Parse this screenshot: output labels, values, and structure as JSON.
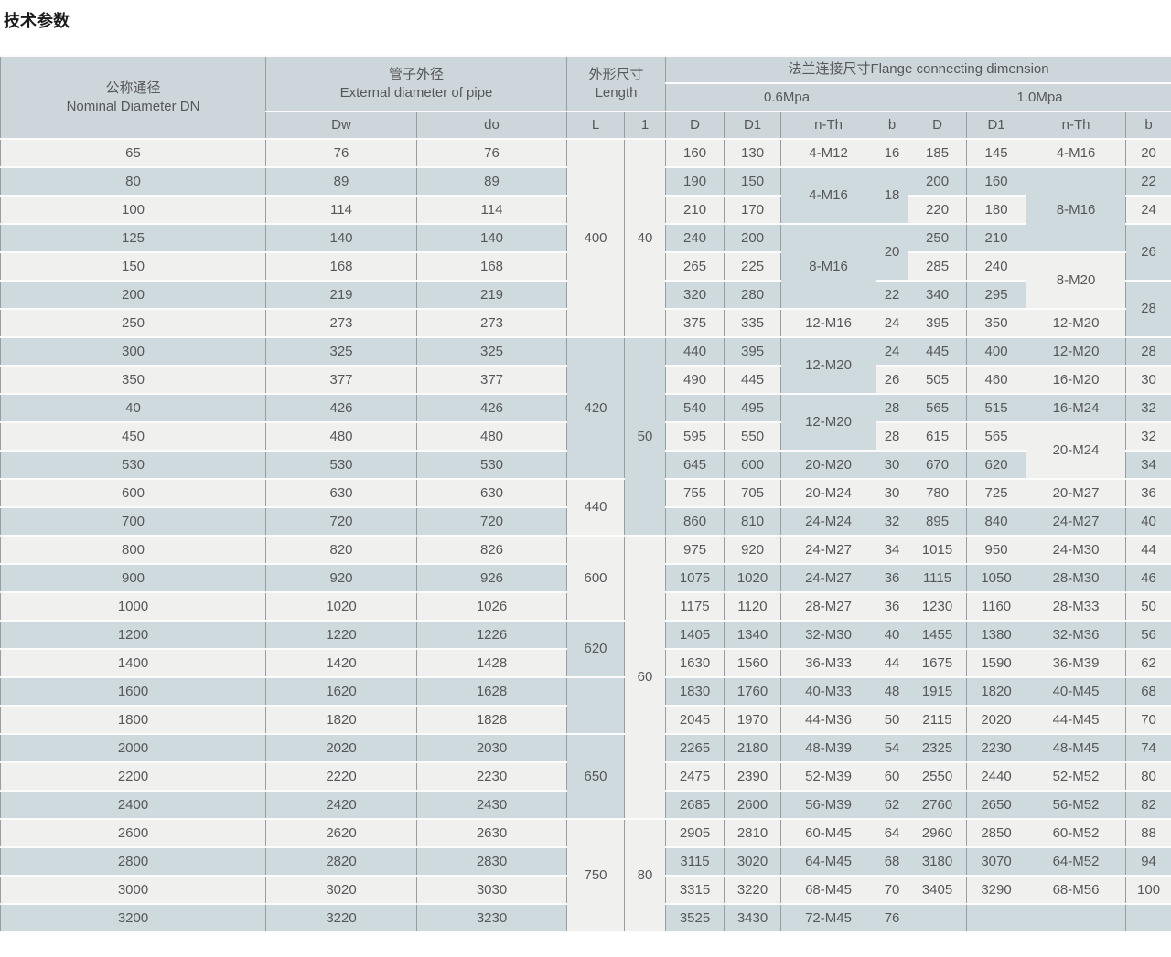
{
  "page_title": "技术参数",
  "colors": {
    "row_light": "#f0f0ee",
    "row_blue": "#cfdade",
    "header_bg": "#ccd6db",
    "grid_vertical": "#979da0",
    "grid_horizontal": "#fcfcfc",
    "text": "#57585a"
  },
  "table": {
    "header": {
      "nominal_diameter": "公称通径\nNominal Diameter DN",
      "external_diameter": "管子外径\nExternal diameter of pipe",
      "length": "外形尺寸\nLength",
      "flange": "法兰连接尺寸Flange connecting dimension",
      "p06": "0.6Mpa",
      "p10": "1.0Mpa",
      "cols": [
        "Dw",
        "do",
        "L",
        "1",
        "D",
        "D1",
        "n-Th",
        "b",
        "D",
        "D1",
        "n-Th",
        "b"
      ]
    },
    "rows": [
      [
        {
          "t": "65"
        },
        {
          "t": "76"
        },
        {
          "t": "76"
        },
        {
          "t": "400",
          "rs": 7
        },
        {
          "t": "40",
          "rs": 7
        },
        {
          "t": "160"
        },
        {
          "t": "130"
        },
        {
          "t": "4-M12"
        },
        {
          "t": "16"
        },
        {
          "t": "185"
        },
        {
          "t": "145"
        },
        {
          "t": "4-M16"
        },
        {
          "t": "20"
        }
      ],
      [
        {
          "t": "80"
        },
        {
          "t": "89"
        },
        {
          "t": "89"
        },
        {
          "t": "190"
        },
        {
          "t": "150"
        },
        {
          "t": "4-M16",
          "rs": 2
        },
        {
          "t": "18",
          "rs": 2
        },
        {
          "t": "200"
        },
        {
          "t": "160"
        },
        {
          "t": "8-M16",
          "rs": 3
        },
        {
          "t": "22"
        }
      ],
      [
        {
          "t": "100"
        },
        {
          "t": "114"
        },
        {
          "t": "114"
        },
        {
          "t": "210"
        },
        {
          "t": "170"
        },
        {
          "t": "220"
        },
        {
          "t": "180"
        },
        {
          "t": "24"
        }
      ],
      [
        {
          "t": "125"
        },
        {
          "t": "140"
        },
        {
          "t": "140"
        },
        {
          "t": "240"
        },
        {
          "t": "200"
        },
        {
          "t": "8-M16",
          "rs": 3
        },
        {
          "t": "20",
          "rs": 2
        },
        {
          "t": "250"
        },
        {
          "t": "210"
        },
        {
          "t": "26",
          "rs": 2
        }
      ],
      [
        {
          "t": "150"
        },
        {
          "t": "168"
        },
        {
          "t": "168"
        },
        {
          "t": "265"
        },
        {
          "t": "225"
        },
        {
          "t": "285"
        },
        {
          "t": "240"
        },
        {
          "t": "8-M20",
          "rs": 2
        }
      ],
      [
        {
          "t": "200"
        },
        {
          "t": "219"
        },
        {
          "t": "219"
        },
        {
          "t": "320"
        },
        {
          "t": "280"
        },
        {
          "t": "22"
        },
        {
          "t": "340"
        },
        {
          "t": "295"
        },
        {
          "t": "28",
          "rs": 2
        }
      ],
      [
        {
          "t": "250"
        },
        {
          "t": "273"
        },
        {
          "t": "273"
        },
        {
          "t": "375"
        },
        {
          "t": "335"
        },
        {
          "t": "12-M16"
        },
        {
          "t": "24"
        },
        {
          "t": "395"
        },
        {
          "t": "350"
        },
        {
          "t": "12-M20"
        }
      ],
      [
        {
          "t": "300"
        },
        {
          "t": "325"
        },
        {
          "t": "325"
        },
        {
          "t": "420",
          "rs": 5
        },
        {
          "t": "50",
          "rs": 7
        },
        {
          "t": "440"
        },
        {
          "t": "395"
        },
        {
          "t": "12-M20",
          "rs": 2
        },
        {
          "t": "24"
        },
        {
          "t": "445"
        },
        {
          "t": "400"
        },
        {
          "t": "12-M20"
        },
        {
          "t": "28"
        }
      ],
      [
        {
          "t": "350"
        },
        {
          "t": "377"
        },
        {
          "t": "377"
        },
        {
          "t": "490"
        },
        {
          "t": "445"
        },
        {
          "t": "26"
        },
        {
          "t": "505"
        },
        {
          "t": "460"
        },
        {
          "t": "16-M20"
        },
        {
          "t": "30"
        }
      ],
      [
        {
          "t": "40"
        },
        {
          "t": "426"
        },
        {
          "t": "426"
        },
        {
          "t": "540"
        },
        {
          "t": "495"
        },
        {
          "t": "12-M20",
          "rs": 2
        },
        {
          "t": "28"
        },
        {
          "t": "565"
        },
        {
          "t": "515"
        },
        {
          "t": "16-M24"
        },
        {
          "t": "32"
        }
      ],
      [
        {
          "t": "450"
        },
        {
          "t": "480"
        },
        {
          "t": "480"
        },
        {
          "t": "595"
        },
        {
          "t": "550"
        },
        {
          "t": "28"
        },
        {
          "t": "615"
        },
        {
          "t": "565"
        },
        {
          "t": "20-M24",
          "rs": 2
        },
        {
          "t": "32"
        }
      ],
      [
        {
          "t": "530"
        },
        {
          "t": "530"
        },
        {
          "t": "530"
        },
        {
          "t": "645"
        },
        {
          "t": "600"
        },
        {
          "t": "20-M20"
        },
        {
          "t": "30"
        },
        {
          "t": "670"
        },
        {
          "t": "620"
        },
        {
          "t": "34"
        }
      ],
      [
        {
          "t": "600"
        },
        {
          "t": "630"
        },
        {
          "t": "630"
        },
        {
          "t": "440",
          "rs": 2
        },
        {
          "t": "755"
        },
        {
          "t": "705"
        },
        {
          "t": "20-M24"
        },
        {
          "t": "30"
        },
        {
          "t": "780"
        },
        {
          "t": "725"
        },
        {
          "t": "20-M27"
        },
        {
          "t": "36"
        }
      ],
      [
        {
          "t": "700"
        },
        {
          "t": "720"
        },
        {
          "t": "720"
        },
        {
          "t": "860"
        },
        {
          "t": "810"
        },
        {
          "t": "24-M24"
        },
        {
          "t": "32"
        },
        {
          "t": "895"
        },
        {
          "t": "840"
        },
        {
          "t": "24-M27"
        },
        {
          "t": "40"
        }
      ],
      [
        {
          "t": "800"
        },
        {
          "t": "820"
        },
        {
          "t": "826"
        },
        {
          "t": "600",
          "rs": 3
        },
        {
          "t": "60",
          "rs": 10
        },
        {
          "t": "975"
        },
        {
          "t": "920"
        },
        {
          "t": "24-M27"
        },
        {
          "t": "34"
        },
        {
          "t": "1015"
        },
        {
          "t": "950"
        },
        {
          "t": "24-M30"
        },
        {
          "t": "44"
        }
      ],
      [
        {
          "t": "900"
        },
        {
          "t": "920"
        },
        {
          "t": "926"
        },
        {
          "t": "1075"
        },
        {
          "t": "1020"
        },
        {
          "t": "24-M27"
        },
        {
          "t": "36"
        },
        {
          "t": "1115"
        },
        {
          "t": "1050"
        },
        {
          "t": "28-M30"
        },
        {
          "t": "46"
        }
      ],
      [
        {
          "t": "1000"
        },
        {
          "t": "1020"
        },
        {
          "t": "1026"
        },
        {
          "t": "1175"
        },
        {
          "t": "1120"
        },
        {
          "t": "28-M27"
        },
        {
          "t": "36"
        },
        {
          "t": "1230"
        },
        {
          "t": "1160"
        },
        {
          "t": "28-M33"
        },
        {
          "t": "50"
        }
      ],
      [
        {
          "t": "1200"
        },
        {
          "t": "1220"
        },
        {
          "t": "1226"
        },
        {
          "t": "620",
          "rs": 2
        },
        {
          "t": "1405"
        },
        {
          "t": "1340"
        },
        {
          "t": "32-M30"
        },
        {
          "t": "40"
        },
        {
          "t": "1455"
        },
        {
          "t": "1380"
        },
        {
          "t": "32-M36"
        },
        {
          "t": "56"
        }
      ],
      [
        {
          "t": "1400"
        },
        {
          "t": "1420"
        },
        {
          "t": "1428"
        },
        {
          "t": "1630"
        },
        {
          "t": "1560"
        },
        {
          "t": "36-M33"
        },
        {
          "t": "44"
        },
        {
          "t": "1675"
        },
        {
          "t": "1590"
        },
        {
          "t": "36-M39"
        },
        {
          "t": "62"
        }
      ],
      [
        {
          "t": "1600"
        },
        {
          "t": "1620"
        },
        {
          "t": "1628"
        },
        {
          "t": "",
          "rs": 2
        },
        {
          "t": "1830"
        },
        {
          "t": "1760"
        },
        {
          "t": "40-M33"
        },
        {
          "t": "48"
        },
        {
          "t": "1915"
        },
        {
          "t": "1820"
        },
        {
          "t": "40-M45"
        },
        {
          "t": "68"
        }
      ],
      [
        {
          "t": "1800"
        },
        {
          "t": "1820"
        },
        {
          "t": "1828"
        },
        {
          "t": "2045"
        },
        {
          "t": "1970"
        },
        {
          "t": "44-M36"
        },
        {
          "t": "50"
        },
        {
          "t": "2115"
        },
        {
          "t": "2020"
        },
        {
          "t": "44-M45"
        },
        {
          "t": "70"
        }
      ],
      [
        {
          "t": "2000"
        },
        {
          "t": "2020"
        },
        {
          "t": "2030"
        },
        {
          "t": "650",
          "rs": 3
        },
        {
          "t": "2265"
        },
        {
          "t": "2180"
        },
        {
          "t": "48-M39"
        },
        {
          "t": "54"
        },
        {
          "t": "2325"
        },
        {
          "t": "2230"
        },
        {
          "t": "48-M45"
        },
        {
          "t": "74"
        }
      ],
      [
        {
          "t": "2200"
        },
        {
          "t": "2220"
        },
        {
          "t": "2230"
        },
        {
          "t": "2475"
        },
        {
          "t": "2390"
        },
        {
          "t": "52-M39"
        },
        {
          "t": "60"
        },
        {
          "t": "2550"
        },
        {
          "t": "2440"
        },
        {
          "t": "52-M52"
        },
        {
          "t": "80"
        }
      ],
      [
        {
          "t": "2400"
        },
        {
          "t": "2420"
        },
        {
          "t": "2430"
        },
        {
          "t": "2685"
        },
        {
          "t": "2600"
        },
        {
          "t": "56-M39"
        },
        {
          "t": "62"
        },
        {
          "t": "2760"
        },
        {
          "t": "2650"
        },
        {
          "t": "56-M52"
        },
        {
          "t": "82"
        }
      ],
      [
        {
          "t": "2600"
        },
        {
          "t": "2620"
        },
        {
          "t": "2630"
        },
        {
          "t": "750",
          "rs": 4
        },
        {
          "t": "80",
          "rs": 4
        },
        {
          "t": "2905"
        },
        {
          "t": "2810"
        },
        {
          "t": "60-M45"
        },
        {
          "t": "64"
        },
        {
          "t": "2960"
        },
        {
          "t": "2850"
        },
        {
          "t": "60-M52"
        },
        {
          "t": "88"
        }
      ],
      [
        {
          "t": "2800"
        },
        {
          "t": "2820"
        },
        {
          "t": "2830"
        },
        {
          "t": "3115"
        },
        {
          "t": "3020"
        },
        {
          "t": "64-M45"
        },
        {
          "t": "68"
        },
        {
          "t": "3180"
        },
        {
          "t": "3070"
        },
        {
          "t": "64-M52"
        },
        {
          "t": "94"
        }
      ],
      [
        {
          "t": "3000"
        },
        {
          "t": "3020"
        },
        {
          "t": "3030"
        },
        {
          "t": "3315"
        },
        {
          "t": "3220"
        },
        {
          "t": "68-M45"
        },
        {
          "t": "70"
        },
        {
          "t": "3405"
        },
        {
          "t": "3290"
        },
        {
          "t": "68-M56"
        },
        {
          "t": "100"
        }
      ],
      [
        {
          "t": "3200"
        },
        {
          "t": "3220"
        },
        {
          "t": "3230"
        },
        {
          "t": "3525"
        },
        {
          "t": "3430"
        },
        {
          "t": "72-M45"
        },
        {
          "t": "76"
        },
        {
          "t": ""
        },
        {
          "t": ""
        },
        {
          "t": ""
        },
        {
          "t": ""
        }
      ]
    ]
  }
}
